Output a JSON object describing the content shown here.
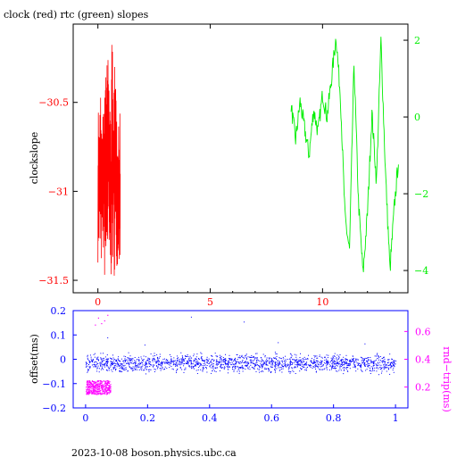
{
  "title": "clock (red) rtc (green) slopes",
  "footer": "2023-10-08  boson.physics.ubc.ca",
  "colors": {
    "clock": "#ff0000",
    "rtc": "#00ee00",
    "offset": "#0000ff",
    "rndtrip": "#ff00ff",
    "frame": "#000000"
  },
  "chart_data": [
    {
      "type": "line",
      "title": "clock (red) rtc (green) slopes",
      "xlim": [
        -1.1,
        13.8
      ],
      "x_ticks": [
        0,
        5,
        10
      ],
      "x_tick_labels": [
        "0",
        "5",
        "10"
      ],
      "ylabel": "clockslope",
      "ylim": [
        -31.57,
        -30.06
      ],
      "y_ticks": [
        -30.5,
        -31,
        -31.5
      ],
      "y_tick_labels": [
        "−30.5",
        "−31",
        "−31.5"
      ],
      "y2lim": [
        -4.58,
        2.42
      ],
      "y2_ticks": [
        2,
        0,
        -2,
        -4
      ],
      "y2_tick_labels": [
        "2",
        "0",
        "−2",
        "−4"
      ],
      "series": [
        {
          "name": "clock",
          "axis": "left",
          "x": [
            0.0,
            0.1,
            0.2,
            0.3,
            0.4,
            0.5,
            0.6,
            0.7,
            0.8,
            0.9,
            1.0
          ],
          "y": [
            -30.78,
            -31.05,
            -30.62,
            -31.22,
            -30.58,
            -31.35,
            -30.5,
            -31.28,
            -30.72,
            -31.1,
            -30.95
          ],
          "min": [
            -31.4,
            -31.43,
            -31.38,
            -31.5,
            -31.47,
            -31.52,
            -31.45,
            -31.48,
            -31.42,
            -31.4,
            -31.25
          ],
          "max": [
            -30.47,
            -30.45,
            -30.44,
            -30.33,
            -30.12,
            -30.43,
            -30.13,
            -30.3,
            -30.38,
            -30.55,
            -30.62
          ]
        },
        {
          "name": "rtc",
          "axis": "right",
          "x": [
            8.6,
            8.8,
            9.0,
            9.2,
            9.4,
            9.6,
            9.8,
            10.0,
            10.2,
            10.4,
            10.6,
            10.8,
            11.0,
            11.2,
            11.4,
            11.6,
            11.8,
            12.0,
            12.2,
            12.4,
            12.6,
            12.8,
            13.0,
            13.2,
            13.4
          ],
          "y": [
            0.3,
            -0.6,
            0.4,
            -0.3,
            -1.0,
            0.2,
            -0.4,
            0.6,
            0.0,
            1.0,
            2.1,
            0.5,
            -2.6,
            -3.5,
            1.4,
            -2.2,
            -4.1,
            -2.5,
            0.1,
            -1.7,
            2.0,
            -1.4,
            -4.0,
            -2.3,
            -1.0
          ]
        }
      ]
    },
    {
      "type": "scatter",
      "xlim": [
        -0.04,
        1.04
      ],
      "x_ticks": [
        0,
        0.2,
        0.4,
        0.6,
        0.8,
        1
      ],
      "x_tick_labels": [
        "0",
        "0.2",
        "0.4",
        "0.6",
        "0.8",
        "1"
      ],
      "ylabel": "offset(ms)",
      "ylim": [
        -0.2,
        0.2
      ],
      "y_ticks": [
        0.2,
        0.1,
        0,
        -0.1,
        -0.2
      ],
      "y_tick_labels": [
        "0.2",
        "0.1",
        "0",
        "−0.1",
        "−0.2"
      ],
      "y2label": "rnd−trip(ms)",
      "y2lim": [
        0.05,
        0.75
      ],
      "y2_ticks": [
        0.6,
        0.4,
        0.2
      ],
      "y2_tick_labels": [
        "0.6",
        "0.4",
        "0.2"
      ],
      "series": [
        {
          "name": "offset",
          "axis": "left",
          "x_range": [
            0,
            1
          ],
          "center": -0.015,
          "spread": 0.028,
          "outliers_x": [
            0.34,
            0.51,
            0.07,
            0.19,
            0.62,
            0.9
          ],
          "outliers_y": [
            0.175,
            0.155,
            0.09,
            0.06,
            0.07,
            0.065
          ]
        },
        {
          "name": "rndtrip",
          "axis": "right",
          "x_range": [
            0,
            0.08
          ],
          "center": 0.2,
          "spread": 0.05,
          "outliers_x": [
            0.04,
            0.06,
            0.07,
            0.03,
            0.05
          ],
          "outliers_y": [
            0.7,
            0.68,
            0.72,
            0.65,
            0.66
          ]
        }
      ]
    }
  ]
}
